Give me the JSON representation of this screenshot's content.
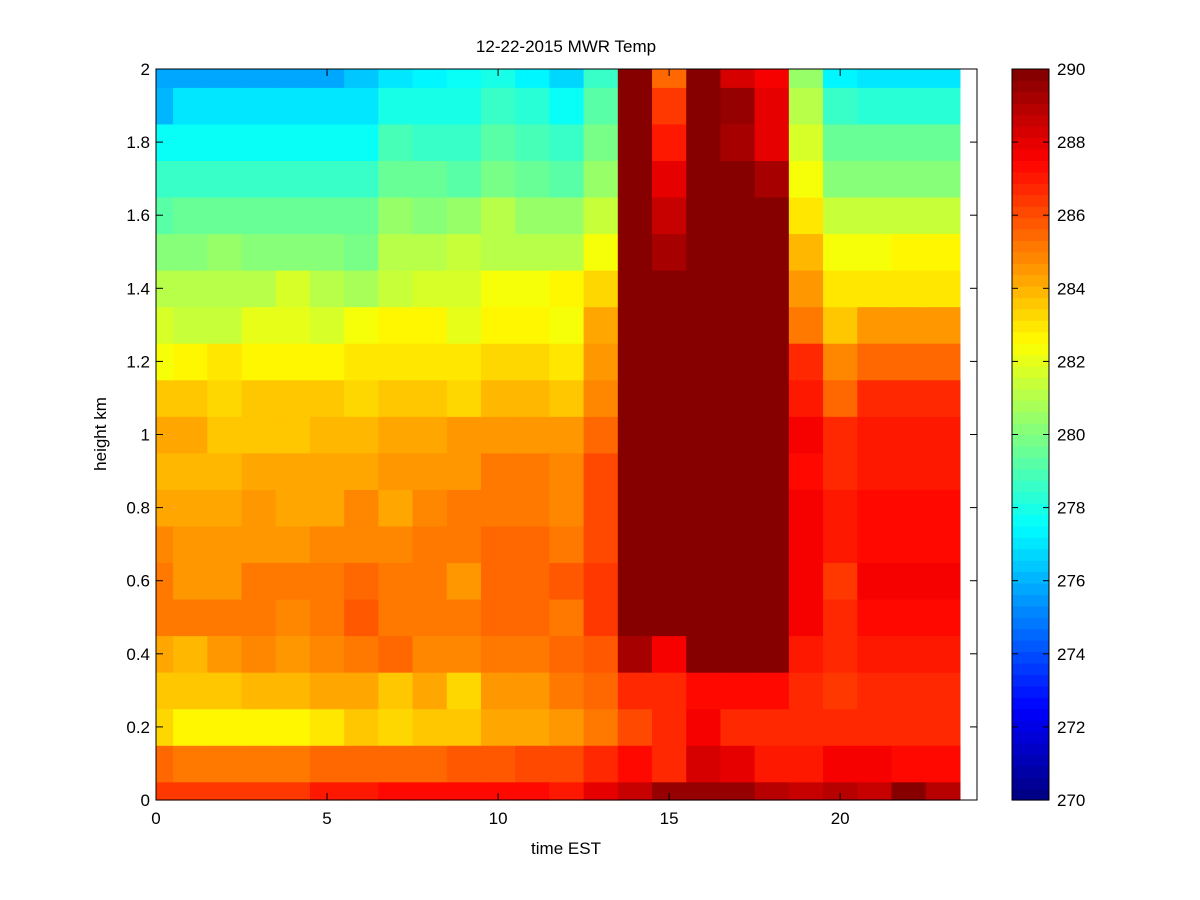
{
  "chart_data": {
    "type": "heatmap",
    "title": "12-22-2015 MWR Temp",
    "xlabel": "time EST",
    "ylabel": "height km",
    "xlim": [
      0,
      24
    ],
    "ylim": [
      0,
      2
    ],
    "x_ticks": [
      0,
      5,
      10,
      15,
      20
    ],
    "y_ticks": [
      0,
      0.2,
      0.4,
      0.6,
      0.8,
      1,
      1.2,
      1.4,
      1.6,
      1.8,
      2
    ],
    "colorbar": {
      "range": [
        270,
        290
      ],
      "ticks": [
        270,
        272,
        274,
        276,
        278,
        280,
        282,
        284,
        286,
        288,
        290
      ],
      "colormap": "jet",
      "levels": 64
    },
    "time_hours": [
      0,
      0.5,
      1.5,
      2.5,
      3.5,
      4.5,
      5.5,
      6.5,
      7.5,
      8.5,
      9.5,
      10.5,
      11.5,
      12.5,
      13.5,
      14.5,
      15.5,
      16.5,
      17.5,
      18.5,
      19.5,
      20.5,
      21.5,
      22.5,
      23.5
    ],
    "height_km": [
      0,
      0.05,
      0.15,
      0.25,
      0.35,
      0.45,
      0.55,
      0.65,
      0.75,
      0.85,
      0.95,
      1.05,
      1.15,
      1.25,
      1.35,
      1.45,
      1.55,
      1.65,
      1.75,
      1.85,
      1.95,
      2.0
    ],
    "temperature_K": [
      [
        286.3,
        286.3,
        286.3,
        286.3,
        286.3,
        287.0,
        287.0,
        287.4,
        287.4,
        287.4,
        287.4,
        287.4,
        287.0,
        288.0,
        288.5,
        289.4,
        289.4,
        289.4,
        289.0,
        288.5,
        289.0,
        288.5,
        289.7,
        289.0
      ],
      [
        285.4,
        285.1,
        285.1,
        285.1,
        285.1,
        285.4,
        285.4,
        285.6,
        285.6,
        285.9,
        285.9,
        286.2,
        286.0,
        286.7,
        287.4,
        286.8,
        288.4,
        288.0,
        287.0,
        287.0,
        287.7,
        287.7,
        287.4,
        287.4
      ],
      [
        283.4,
        282.5,
        282.5,
        282.7,
        282.7,
        283.0,
        283.6,
        283.2,
        283.6,
        283.6,
        284.1,
        284.3,
        284.6,
        285.3,
        286.2,
        286.8,
        287.5,
        286.7,
        286.6,
        286.6,
        286.6,
        286.6,
        286.6,
        286.6
      ],
      [
        283.7,
        283.7,
        283.7,
        284.0,
        284.0,
        284.2,
        284.3,
        283.6,
        284.1,
        283.3,
        284.6,
        284.6,
        285.1,
        285.6,
        286.7,
        286.7,
        287.3,
        287.3,
        287.3,
        286.7,
        286.3,
        286.7,
        286.7,
        286.7
      ],
      [
        284.2,
        283.9,
        284.4,
        284.9,
        284.5,
        284.7,
        285.1,
        285.4,
        284.7,
        284.9,
        285.1,
        285.3,
        285.5,
        285.7,
        289.2,
        287.7,
        289.7,
        289.7,
        289.7,
        286.9,
        286.6,
        287.1,
        287.1,
        287.1
      ],
      [
        285.1,
        285.1,
        285.1,
        285.3,
        284.8,
        285.1,
        285.7,
        285.1,
        285.1,
        285.3,
        285.4,
        285.6,
        285.3,
        286.3,
        290.0,
        289.8,
        290.0,
        290.0,
        290.0,
        287.6,
        286.7,
        287.3,
        287.3,
        287.3
      ],
      [
        285.0,
        284.4,
        284.4,
        285.1,
        285.1,
        285.1,
        285.4,
        285.1,
        285.1,
        284.6,
        285.6,
        285.6,
        285.7,
        286.3,
        290.0,
        290.0,
        290.0,
        290.0,
        290.0,
        287.6,
        286.5,
        287.5,
        287.5,
        287.5
      ],
      [
        284.8,
        284.6,
        284.6,
        284.6,
        284.6,
        284.8,
        284.8,
        284.8,
        285.1,
        285.1,
        285.4,
        285.4,
        285.3,
        286.2,
        290.0,
        290.0,
        290.0,
        290.0,
        290.0,
        287.6,
        286.9,
        287.4,
        287.4,
        287.4
      ],
      [
        284.2,
        284.2,
        284.2,
        284.6,
        284.3,
        284.3,
        284.8,
        284.3,
        284.7,
        285.1,
        285.1,
        285.1,
        284.7,
        286.2,
        290.0,
        290.0,
        290.0,
        290.0,
        290.0,
        287.6,
        287.0,
        287.3,
        287.3,
        287.3
      ],
      [
        284.0,
        283.8,
        283.8,
        284.1,
        284.1,
        284.1,
        284.1,
        284.4,
        284.6,
        284.6,
        285.0,
        285.0,
        284.7,
        286.0,
        290.0,
        290.0,
        290.0,
        290.0,
        290.0,
        287.4,
        286.6,
        287.0,
        287.0,
        287.0
      ],
      [
        284.1,
        284.1,
        283.7,
        283.7,
        283.7,
        283.9,
        283.9,
        284.1,
        284.3,
        284.5,
        284.4,
        284.5,
        284.6,
        285.4,
        290.0,
        290.0,
        290.0,
        290.0,
        290.0,
        287.5,
        286.6,
        287.0,
        287.0,
        287.0
      ],
      [
        283.5,
        283.5,
        283.2,
        283.5,
        283.5,
        283.5,
        283.2,
        283.6,
        283.6,
        283.3,
        283.8,
        283.8,
        283.5,
        284.9,
        290.0,
        290.0,
        290.0,
        290.0,
        290.0,
        287.1,
        285.6,
        286.6,
        286.6,
        286.6
      ],
      [
        282.3,
        282.6,
        282.9,
        282.5,
        282.5,
        282.5,
        283.1,
        283.1,
        283.1,
        282.9,
        283.4,
        283.2,
        282.9,
        284.4,
        290.0,
        290.0,
        290.0,
        290.0,
        290.0,
        286.6,
        284.7,
        285.5,
        285.5,
        285.5
      ],
      [
        281.7,
        281.5,
        281.5,
        281.9,
        281.9,
        281.6,
        282.2,
        282.7,
        282.7,
        282.1,
        282.7,
        282.7,
        282.2,
        284.1,
        290.0,
        290.0,
        290.0,
        290.0,
        290.0,
        285.2,
        283.6,
        284.6,
        284.6,
        284.6
      ],
      [
        281.1,
        281.1,
        281.1,
        281.1,
        281.7,
        281.1,
        280.8,
        281.4,
        281.6,
        281.6,
        282.2,
        282.3,
        282.8,
        283.4,
        290.0,
        290.0,
        290.0,
        290.0,
        290.0,
        284.5,
        283.0,
        283.0,
        283.0,
        283.0
      ],
      [
        280.1,
        280.3,
        280.6,
        280.1,
        280.3,
        280.3,
        279.7,
        281.0,
        281.1,
        281.4,
        281.1,
        281.0,
        281.0,
        282.2,
        290.0,
        289.1,
        290.0,
        290.0,
        290.0,
        284.0,
        282.2,
        282.2,
        282.7,
        282.7
      ],
      [
        279.3,
        279.6,
        279.6,
        279.6,
        279.6,
        279.6,
        279.6,
        280.6,
        280.3,
        280.4,
        281.0,
        280.6,
        280.5,
        281.4,
        290.0,
        288.6,
        290.0,
        290.0,
        289.7,
        283.0,
        281.3,
        281.3,
        281.3,
        281.3
      ],
      [
        278.6,
        278.6,
        278.6,
        278.6,
        278.6,
        278.6,
        278.6,
        279.6,
        279.6,
        279.1,
        279.9,
        279.5,
        279.3,
        280.6,
        290.0,
        288.0,
        290.0,
        290.0,
        289.1,
        282.4,
        280.1,
        280.1,
        280.1,
        280.1
      ],
      [
        277.6,
        277.6,
        277.6,
        277.6,
        277.6,
        277.6,
        277.6,
        278.9,
        278.6,
        278.6,
        279.3,
        279.0,
        278.7,
        279.8,
        290.0,
        286.9,
        290.0,
        289.3,
        287.9,
        281.6,
        279.5,
        279.5,
        279.5,
        279.5
      ],
      [
        276.2,
        277.1,
        277.1,
        277.1,
        277.1,
        277.1,
        277.1,
        278.1,
        278.1,
        278.1,
        278.6,
        278.3,
        277.8,
        279.3,
        290.0,
        286.4,
        290.0,
        289.6,
        288.0,
        281.1,
        278.6,
        278.3,
        278.3,
        278.3
      ],
      [
        275.9,
        275.9,
        275.9,
        275.9,
        275.9,
        275.9,
        276.4,
        276.9,
        277.3,
        277.8,
        278.0,
        277.4,
        276.6,
        278.6,
        290.0,
        285.4,
        290.0,
        288.3,
        287.7,
        280.6,
        277.4,
        277.0,
        276.9,
        276.9
      ]
    ]
  }
}
